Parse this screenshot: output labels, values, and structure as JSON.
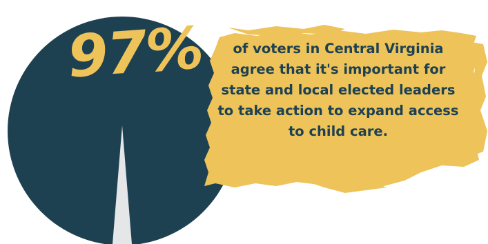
{
  "stat": {
    "value": "97%",
    "fraction": 0.97,
    "statement": "of voters in Central Virginia agree that it's important for state and local elected leaders to take action to expand access to child care."
  },
  "colors": {
    "circle": "#1e4152",
    "highlight": "#edc35a",
    "needle": "#e4e6e8",
    "text": "#1e4152",
    "background": "#ffffff"
  }
}
